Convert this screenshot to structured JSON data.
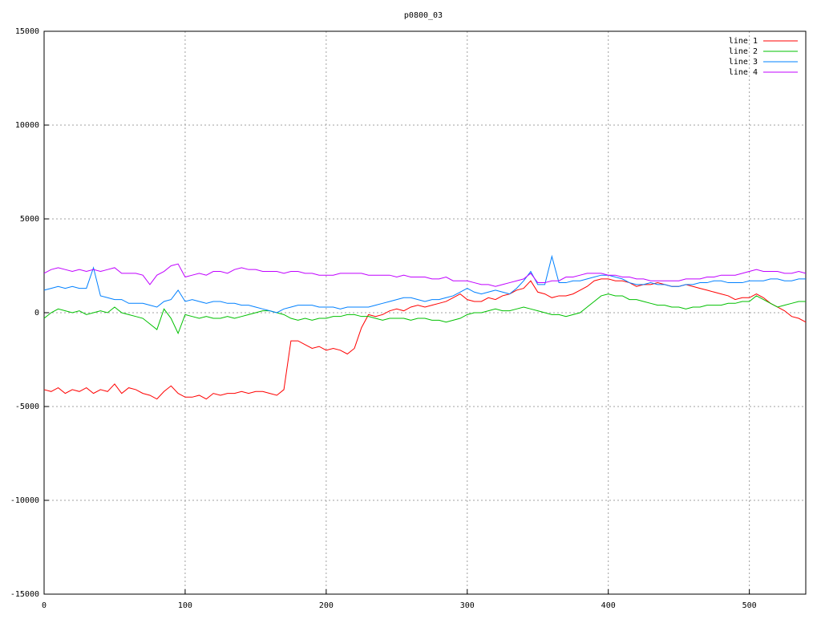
{
  "chart_data": {
    "type": "line",
    "title": "p0800_03",
    "x": [
      0,
      5,
      10,
      15,
      20,
      25,
      30,
      35,
      40,
      45,
      50,
      55,
      60,
      65,
      70,
      75,
      80,
      85,
      90,
      95,
      100,
      105,
      110,
      115,
      120,
      125,
      130,
      135,
      140,
      145,
      150,
      155,
      160,
      165,
      170,
      175,
      180,
      185,
      190,
      195,
      200,
      205,
      210,
      215,
      220,
      225,
      230,
      235,
      240,
      245,
      250,
      255,
      260,
      265,
      270,
      275,
      280,
      285,
      290,
      295,
      300,
      305,
      310,
      315,
      320,
      325,
      330,
      335,
      340,
      345,
      350,
      355,
      360,
      365,
      370,
      375,
      380,
      385,
      390,
      395,
      400,
      405,
      410,
      415,
      420,
      425,
      430,
      435,
      440,
      445,
      450,
      455,
      460,
      465,
      470,
      475,
      480,
      485,
      490,
      495,
      500,
      505,
      510,
      515,
      520,
      525,
      530,
      535,
      540
    ],
    "series": [
      {
        "name": "line 1",
        "color": "#ff0000",
        "values": [
          -4100,
          -4200,
          -4000,
          -4300,
          -4100,
          -4200,
          -4000,
          -4300,
          -4100,
          -4200,
          -3800,
          -4300,
          -4000,
          -4100,
          -4300,
          -4400,
          -4600,
          -4200,
          -3900,
          -4300,
          -4500,
          -4500,
          -4400,
          -4600,
          -4300,
          -4400,
          -4300,
          -4300,
          -4200,
          -4300,
          -4200,
          -4200,
          -4300,
          -4400,
          -4100,
          -1500,
          -1500,
          -1700,
          -1900,
          -1800,
          -2000,
          -1900,
          -2000,
          -2200,
          -1900,
          -800,
          -100,
          -200,
          -100,
          100,
          200,
          100,
          300,
          400,
          300,
          400,
          500,
          600,
          800,
          1000,
          700,
          600,
          600,
          800,
          700,
          900,
          1000,
          1200,
          1300,
          1700,
          1100,
          1000,
          800,
          900,
          900,
          1000,
          1200,
          1400,
          1700,
          1800,
          1800,
          1700,
          1700,
          1600,
          1400,
          1500,
          1500,
          1600,
          1500,
          1400,
          1400,
          1500,
          1400,
          1300,
          1200,
          1100,
          1000,
          900,
          700,
          800,
          800,
          1000,
          800,
          500,
          300,
          100,
          -200,
          -300,
          -500
        ]
      },
      {
        "name": "line 2",
        "color": "#00c000",
        "values": [
          -300,
          0,
          200,
          100,
          0,
          100,
          -100,
          0,
          100,
          0,
          300,
          0,
          -100,
          -200,
          -300,
          -600,
          -900,
          200,
          -300,
          -1100,
          -100,
          -200,
          -300,
          -200,
          -300,
          -300,
          -200,
          -300,
          -200,
          -100,
          0,
          100,
          100,
          0,
          -100,
          -300,
          -400,
          -300,
          -400,
          -300,
          -300,
          -200,
          -200,
          -100,
          -100,
          -200,
          -200,
          -300,
          -400,
          -300,
          -300,
          -300,
          -400,
          -300,
          -300,
          -400,
          -400,
          -500,
          -400,
          -300,
          -100,
          0,
          0,
          100,
          200,
          100,
          100,
          200,
          300,
          200,
          100,
          0,
          -100,
          -100,
          -200,
          -100,
          0,
          300,
          600,
          900,
          1000,
          900,
          900,
          700,
          700,
          600,
          500,
          400,
          400,
          300,
          300,
          200,
          300,
          300,
          400,
          400,
          400,
          500,
          500,
          600,
          600,
          900,
          700,
          500,
          300,
          400,
          500,
          600,
          600
        ]
      },
      {
        "name": "line 3",
        "color": "#0080ff",
        "values": [
          1200,
          1300,
          1400,
          1300,
          1400,
          1300,
          1300,
          2400,
          900,
          800,
          700,
          700,
          500,
          500,
          500,
          400,
          300,
          600,
          700,
          1200,
          600,
          700,
          600,
          500,
          600,
          600,
          500,
          500,
          400,
          400,
          300,
          200,
          100,
          0,
          200,
          300,
          400,
          400,
          400,
          300,
          300,
          300,
          200,
          300,
          300,
          300,
          300,
          400,
          500,
          600,
          700,
          800,
          800,
          700,
          600,
          700,
          700,
          800,
          900,
          1100,
          1300,
          1100,
          1000,
          1100,
          1200,
          1100,
          1000,
          1300,
          1700,
          2200,
          1500,
          1500,
          3000,
          1600,
          1600,
          1700,
          1700,
          1800,
          1900,
          2000,
          2000,
          1900,
          1800,
          1600,
          1500,
          1500,
          1600,
          1500,
          1500,
          1400,
          1400,
          1500,
          1500,
          1600,
          1600,
          1700,
          1700,
          1600,
          1600,
          1600,
          1700,
          1700,
          1700,
          1800,
          1800,
          1700,
          1700,
          1800,
          1800
        ]
      },
      {
        "name": "line 4",
        "color": "#c000ff",
        "values": [
          2100,
          2300,
          2400,
          2300,
          2200,
          2300,
          2200,
          2300,
          2200,
          2300,
          2400,
          2100,
          2100,
          2100,
          2000,
          1500,
          2000,
          2200,
          2500,
          2600,
          1900,
          2000,
          2100,
          2000,
          2200,
          2200,
          2100,
          2300,
          2400,
          2300,
          2300,
          2200,
          2200,
          2200,
          2100,
          2200,
          2200,
          2100,
          2100,
          2000,
          2000,
          2000,
          2100,
          2100,
          2100,
          2100,
          2000,
          2000,
          2000,
          2000,
          1900,
          2000,
          1900,
          1900,
          1900,
          1800,
          1800,
          1900,
          1700,
          1700,
          1700,
          1600,
          1500,
          1500,
          1400,
          1500,
          1600,
          1700,
          1800,
          2100,
          1600,
          1600,
          1700,
          1700,
          1900,
          1900,
          2000,
          2100,
          2100,
          2100,
          2000,
          2000,
          1900,
          1900,
          1800,
          1800,
          1700,
          1700,
          1700,
          1700,
          1700,
          1800,
          1800,
          1800,
          1900,
          1900,
          2000,
          2000,
          2000,
          2100,
          2200,
          2300,
          2200,
          2200,
          2200,
          2100,
          2100,
          2200,
          2100
        ]
      }
    ],
    "xlim": [
      0,
      540
    ],
    "xticks": [
      0,
      100,
      200,
      300,
      400,
      500
    ],
    "ylim": [
      -15000,
      15000
    ],
    "yticks": [
      -15000,
      -10000,
      -5000,
      0,
      5000,
      10000,
      15000
    ],
    "grid": true,
    "legend": "top-right"
  }
}
